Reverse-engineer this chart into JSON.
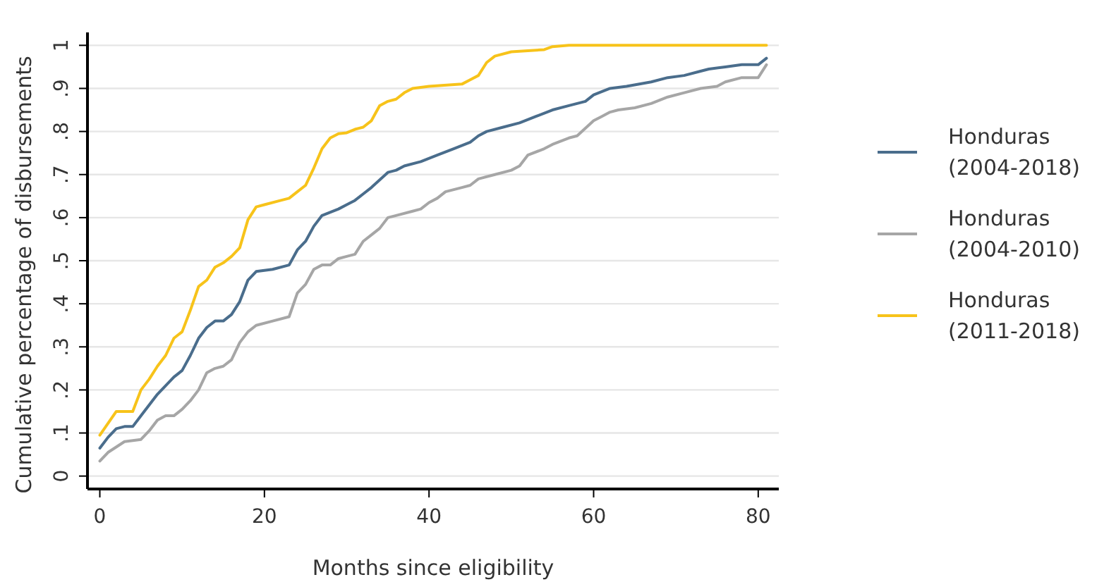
{
  "chart_data": {
    "type": "line",
    "xlabel": "Months since eligibility",
    "ylabel": "Cumulative percentage of disbursements",
    "xlim": [
      -1.5,
      82.5
    ],
    "xticks": [
      0,
      20,
      40,
      60,
      80
    ],
    "ylim": [
      -0.03,
      1.03
    ],
    "yticks": [
      0,
      {
        "value": 0.1,
        "label": ".1"
      },
      {
        "value": 0.2,
        "label": ".2"
      },
      {
        "value": 0.3,
        "label": ".3"
      },
      {
        "value": 0.4,
        "label": ".4"
      },
      {
        "value": 0.5,
        "label": ".5"
      },
      {
        "value": 0.6,
        "label": ".6"
      },
      {
        "value": 0.7,
        "label": ".7"
      },
      {
        "value": 0.8,
        "label": ".8"
      },
      {
        "value": 0.9,
        "label": ".9"
      },
      1
    ],
    "grid": "y",
    "legend": "right",
    "marker": "none",
    "line_style": "solid",
    "series": [
      {
        "name": "Honduras (2004-2018)",
        "color": "#4a6d8c",
        "x": [
          0,
          1,
          2,
          3,
          4,
          5,
          6,
          7,
          8,
          9,
          10,
          11,
          12,
          13,
          14,
          15,
          16,
          17,
          18,
          19,
          21,
          23,
          24,
          25,
          26,
          27,
          29,
          30,
          31,
          32,
          33,
          35,
          36,
          37,
          39,
          41,
          43,
          45,
          46,
          47,
          49,
          51,
          53,
          55,
          57,
          59,
          60,
          62,
          64,
          67,
          69,
          71,
          73,
          74,
          76,
          78,
          80,
          81
        ],
        "values": [
          0.065,
          0.09,
          0.11,
          0.115,
          0.115,
          0.14,
          0.165,
          0.19,
          0.21,
          0.23,
          0.245,
          0.28,
          0.32,
          0.345,
          0.36,
          0.36,
          0.375,
          0.405,
          0.455,
          0.475,
          0.48,
          0.49,
          0.525,
          0.545,
          0.58,
          0.605,
          0.62,
          0.63,
          0.64,
          0.655,
          0.67,
          0.705,
          0.71,
          0.72,
          0.73,
          0.745,
          0.76,
          0.775,
          0.79,
          0.8,
          0.81,
          0.82,
          0.835,
          0.85,
          0.86,
          0.87,
          0.885,
          0.9,
          0.905,
          0.915,
          0.925,
          0.93,
          0.94,
          0.945,
          0.95,
          0.955,
          0.955,
          0.97
        ]
      },
      {
        "name": "Honduras (2004-2010)",
        "color": "#a6a6a6",
        "x": [
          0,
          1,
          3,
          5,
          6,
          7,
          8,
          9,
          10,
          11,
          12,
          13,
          14,
          15,
          16,
          17,
          18,
          19,
          21,
          23,
          24,
          25,
          26,
          27,
          28,
          29,
          30,
          31,
          32,
          33,
          34,
          35,
          36,
          38,
          39,
          40,
          41,
          42,
          44,
          45,
          46,
          48,
          50,
          51,
          52,
          54,
          55,
          57,
          58,
          60,
          61,
          62,
          63,
          65,
          67,
          69,
          71,
          73,
          75,
          76,
          78,
          80,
          81
        ],
        "values": [
          0.035,
          0.055,
          0.08,
          0.085,
          0.105,
          0.13,
          0.14,
          0.14,
          0.155,
          0.175,
          0.2,
          0.24,
          0.25,
          0.255,
          0.27,
          0.31,
          0.335,
          0.35,
          0.36,
          0.37,
          0.425,
          0.445,
          0.48,
          0.49,
          0.49,
          0.505,
          0.51,
          0.515,
          0.545,
          0.56,
          0.575,
          0.6,
          0.605,
          0.615,
          0.62,
          0.635,
          0.645,
          0.66,
          0.67,
          0.675,
          0.69,
          0.7,
          0.71,
          0.72,
          0.745,
          0.76,
          0.77,
          0.785,
          0.79,
          0.825,
          0.835,
          0.845,
          0.85,
          0.855,
          0.865,
          0.88,
          0.89,
          0.9,
          0.905,
          0.915,
          0.925,
          0.925,
          0.955
        ]
      },
      {
        "name": "Honduras (2011-2018)",
        "color": "#f7c31a",
        "x": [
          0,
          2,
          4,
          5,
          6,
          7,
          8,
          9,
          10,
          11,
          12,
          13,
          14,
          15,
          16,
          17,
          18,
          19,
          20,
          22,
          23,
          24,
          25,
          26,
          27,
          28,
          29,
          30,
          31,
          32,
          33,
          34,
          35,
          36,
          37,
          38,
          40,
          44,
          45,
          46,
          47,
          48,
          50,
          54,
          55,
          57,
          81
        ],
        "values": [
          0.095,
          0.15,
          0.15,
          0.2,
          0.225,
          0.255,
          0.28,
          0.32,
          0.335,
          0.385,
          0.44,
          0.455,
          0.485,
          0.495,
          0.51,
          0.53,
          0.595,
          0.625,
          0.63,
          0.64,
          0.645,
          0.66,
          0.675,
          0.715,
          0.76,
          0.785,
          0.795,
          0.797,
          0.805,
          0.81,
          0.825,
          0.86,
          0.87,
          0.875,
          0.89,
          0.9,
          0.905,
          0.91,
          0.92,
          0.93,
          0.96,
          0.975,
          0.985,
          0.99,
          0.997,
          1.0,
          1.0
        ]
      }
    ]
  }
}
